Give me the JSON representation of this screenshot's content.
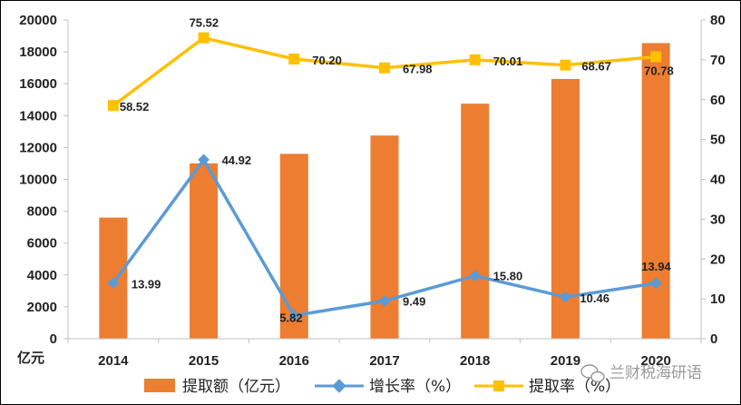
{
  "chart_data": {
    "type": "bar",
    "categories": [
      "2014",
      "2015",
      "2016",
      "2017",
      "2018",
      "2019",
      "2020"
    ],
    "y_left": {
      "unit_label": "亿元",
      "ylim": [
        0,
        20000
      ],
      "ticks": [
        0,
        2000,
        4000,
        6000,
        8000,
        10000,
        12000,
        14000,
        16000,
        18000,
        20000
      ]
    },
    "y_right": {
      "ylim": [
        0,
        80
      ],
      "ticks": [
        0,
        10,
        20,
        30,
        40,
        50,
        60,
        70,
        80
      ]
    },
    "series": [
      {
        "name": "提取额（亿元）",
        "type": "bar",
        "axis": "left",
        "color": "#ED7D31",
        "values": [
          7600,
          11000,
          11600,
          12750,
          14750,
          16300,
          18550
        ]
      },
      {
        "name": "增长率（%）",
        "type": "line",
        "axis": "right",
        "color": "#5B9BD5",
        "marker": "diamond",
        "values": [
          13.99,
          44.92,
          5.82,
          9.49,
          15.8,
          10.46,
          13.94
        ],
        "labels": [
          "13.99",
          "44.92",
          "5.82",
          "9.49",
          "15.80",
          "10.46",
          "13.94"
        ]
      },
      {
        "name": "提取率（%）",
        "type": "line",
        "axis": "right",
        "color": "#FFC000",
        "marker": "square",
        "values": [
          58.52,
          75.52,
          70.2,
          67.98,
          70.01,
          68.67,
          70.78
        ],
        "labels": [
          "58.52",
          "75.52",
          "70.20",
          "67.98",
          "70.01",
          "68.67",
          "70.78"
        ]
      }
    ],
    "grid": false,
    "legend": "bottom"
  },
  "watermark": {
    "text": "兰财税海研语"
  }
}
